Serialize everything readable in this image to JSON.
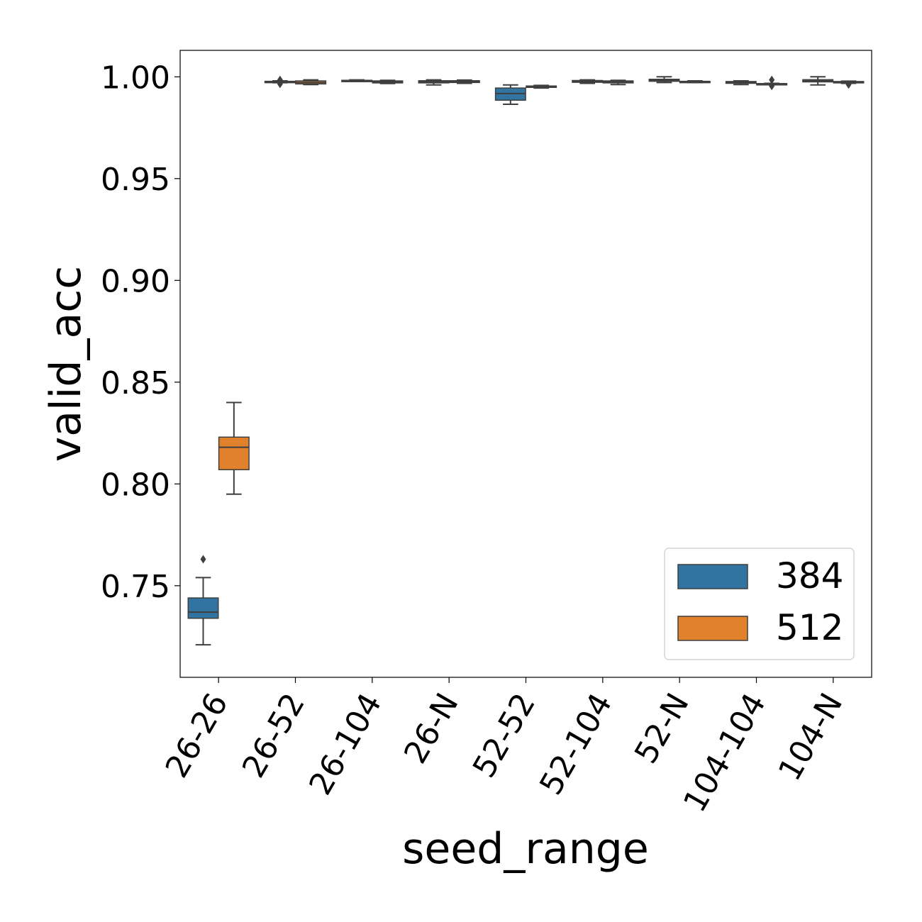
{
  "chart_data": {
    "type": "box",
    "title": "",
    "xlabel": "seed_range",
    "ylabel": "valid_acc",
    "ylim": [
      0.705,
      1.013
    ],
    "y_ticks": [
      "0.75",
      "0.80",
      "0.85",
      "0.90",
      "0.95",
      "1.00"
    ],
    "categories": [
      "26-26",
      "26-52",
      "26-104",
      "26-N",
      "52-52",
      "52-104",
      "52-N",
      "104-104",
      "104-N"
    ],
    "legend": {
      "position": "lower-right",
      "entries": [
        "384",
        "512"
      ]
    },
    "series": [
      {
        "name": "384",
        "color": "#3274a1",
        "boxes": [
          {
            "min": 0.721,
            "q1": 0.734,
            "median": 0.737,
            "q3": 0.744,
            "max": 0.754,
            "outliers": [
              0.763
            ]
          },
          {
            "min": 0.9971,
            "q1": 0.9974,
            "median": 0.9976,
            "q3": 0.9978,
            "max": 0.998,
            "outliers": [
              0.9965,
              0.9985
            ]
          },
          {
            "min": 0.9978,
            "q1": 0.998,
            "median": 0.9981,
            "q3": 0.9983,
            "max": 0.9985,
            "outliers": []
          },
          {
            "min": 0.996,
            "q1": 0.997,
            "median": 0.9975,
            "q3": 0.9981,
            "max": 0.9985,
            "outliers": []
          },
          {
            "min": 0.9865,
            "q1": 0.9885,
            "median": 0.9918,
            "q3": 0.9945,
            "max": 0.996,
            "outliers": []
          },
          {
            "min": 0.9968,
            "q1": 0.9973,
            "median": 0.9978,
            "q3": 0.9982,
            "max": 0.9985,
            "outliers": []
          },
          {
            "min": 0.9972,
            "q1": 0.9978,
            "median": 0.9982,
            "q3": 0.9988,
            "max": 1.0,
            "outliers": []
          },
          {
            "min": 0.9962,
            "q1": 0.9968,
            "median": 0.9972,
            "q3": 0.9977,
            "max": 0.998,
            "outliers": []
          },
          {
            "min": 0.996,
            "q1": 0.9975,
            "median": 0.998,
            "q3": 0.9986,
            "max": 1.0,
            "outliers": []
          }
        ]
      },
      {
        "name": "512",
        "color": "#e1812c",
        "boxes": [
          {
            "min": 0.795,
            "q1": 0.807,
            "median": 0.818,
            "q3": 0.823,
            "max": 0.84,
            "outliers": []
          },
          {
            "min": 0.9962,
            "q1": 0.9965,
            "median": 0.9972,
            "q3": 0.998,
            "max": 0.9985,
            "outliers": []
          },
          {
            "min": 0.9967,
            "q1": 0.997,
            "median": 0.9975,
            "q3": 0.998,
            "max": 0.9983,
            "outliers": []
          },
          {
            "min": 0.9968,
            "q1": 0.9972,
            "median": 0.9976,
            "q3": 0.9981,
            "max": 0.9984,
            "outliers": []
          },
          {
            "min": 0.9945,
            "q1": 0.9948,
            "median": 0.995,
            "q3": 0.9955,
            "max": 0.9958,
            "outliers": []
          },
          {
            "min": 0.9962,
            "q1": 0.997,
            "median": 0.9975,
            "q3": 0.998,
            "max": 0.9983,
            "outliers": []
          },
          {
            "min": 0.9972,
            "q1": 0.9974,
            "median": 0.9976,
            "q3": 0.9978,
            "max": 0.998,
            "outliers": []
          },
          {
            "min": 0.9962,
            "q1": 0.9963,
            "median": 0.9965,
            "q3": 0.9967,
            "max": 0.9968,
            "outliers": [
              0.9955,
              0.9985
            ]
          },
          {
            "min": 0.9968,
            "q1": 0.9971,
            "median": 0.9974,
            "q3": 0.9977,
            "max": 0.9979,
            "outliers": [
              0.9962
            ]
          }
        ]
      }
    ]
  }
}
